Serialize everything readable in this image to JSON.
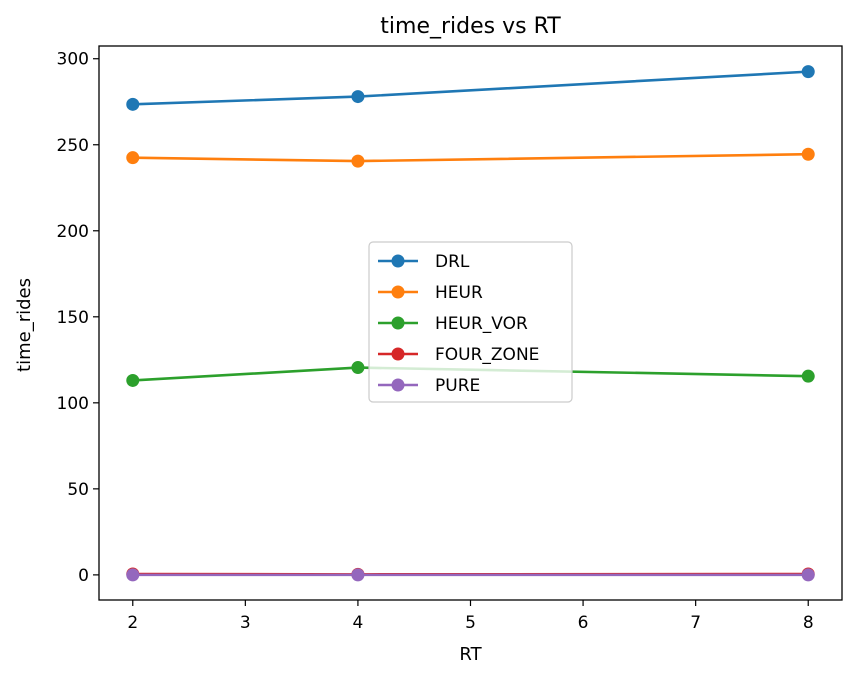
{
  "chart_data": {
    "type": "line",
    "title": "time_rides vs RT",
    "xlabel": "RT",
    "ylabel": "time_rides",
    "x": [
      2,
      4,
      8
    ],
    "xlim": [
      1.7,
      8.3
    ],
    "ylim": [
      -14.6,
      307.4
    ],
    "xticks": [
      "2",
      "3",
      "4",
      "5",
      "6",
      "7",
      "8"
    ],
    "yticks": [
      "0",
      "50",
      "100",
      "150",
      "200",
      "250",
      "300"
    ],
    "grid": false,
    "legend": {
      "placement": "center"
    },
    "series": [
      {
        "name": "DRL",
        "color": "#1f77b4",
        "values": [
          273.5,
          278.0,
          292.5
        ]
      },
      {
        "name": "HEUR",
        "color": "#ff7f0e",
        "values": [
          242.5,
          240.5,
          244.5
        ]
      },
      {
        "name": "HEUR_VOR",
        "color": "#2ca02c",
        "values": [
          113.0,
          120.5,
          115.5
        ]
      },
      {
        "name": "FOUR_ZONE",
        "color": "#d62728",
        "values": [
          0.5,
          0.3,
          0.5
        ]
      },
      {
        "name": "PURE",
        "color": "#9467bd",
        "values": [
          0.0,
          0.0,
          0.0
        ]
      }
    ]
  }
}
